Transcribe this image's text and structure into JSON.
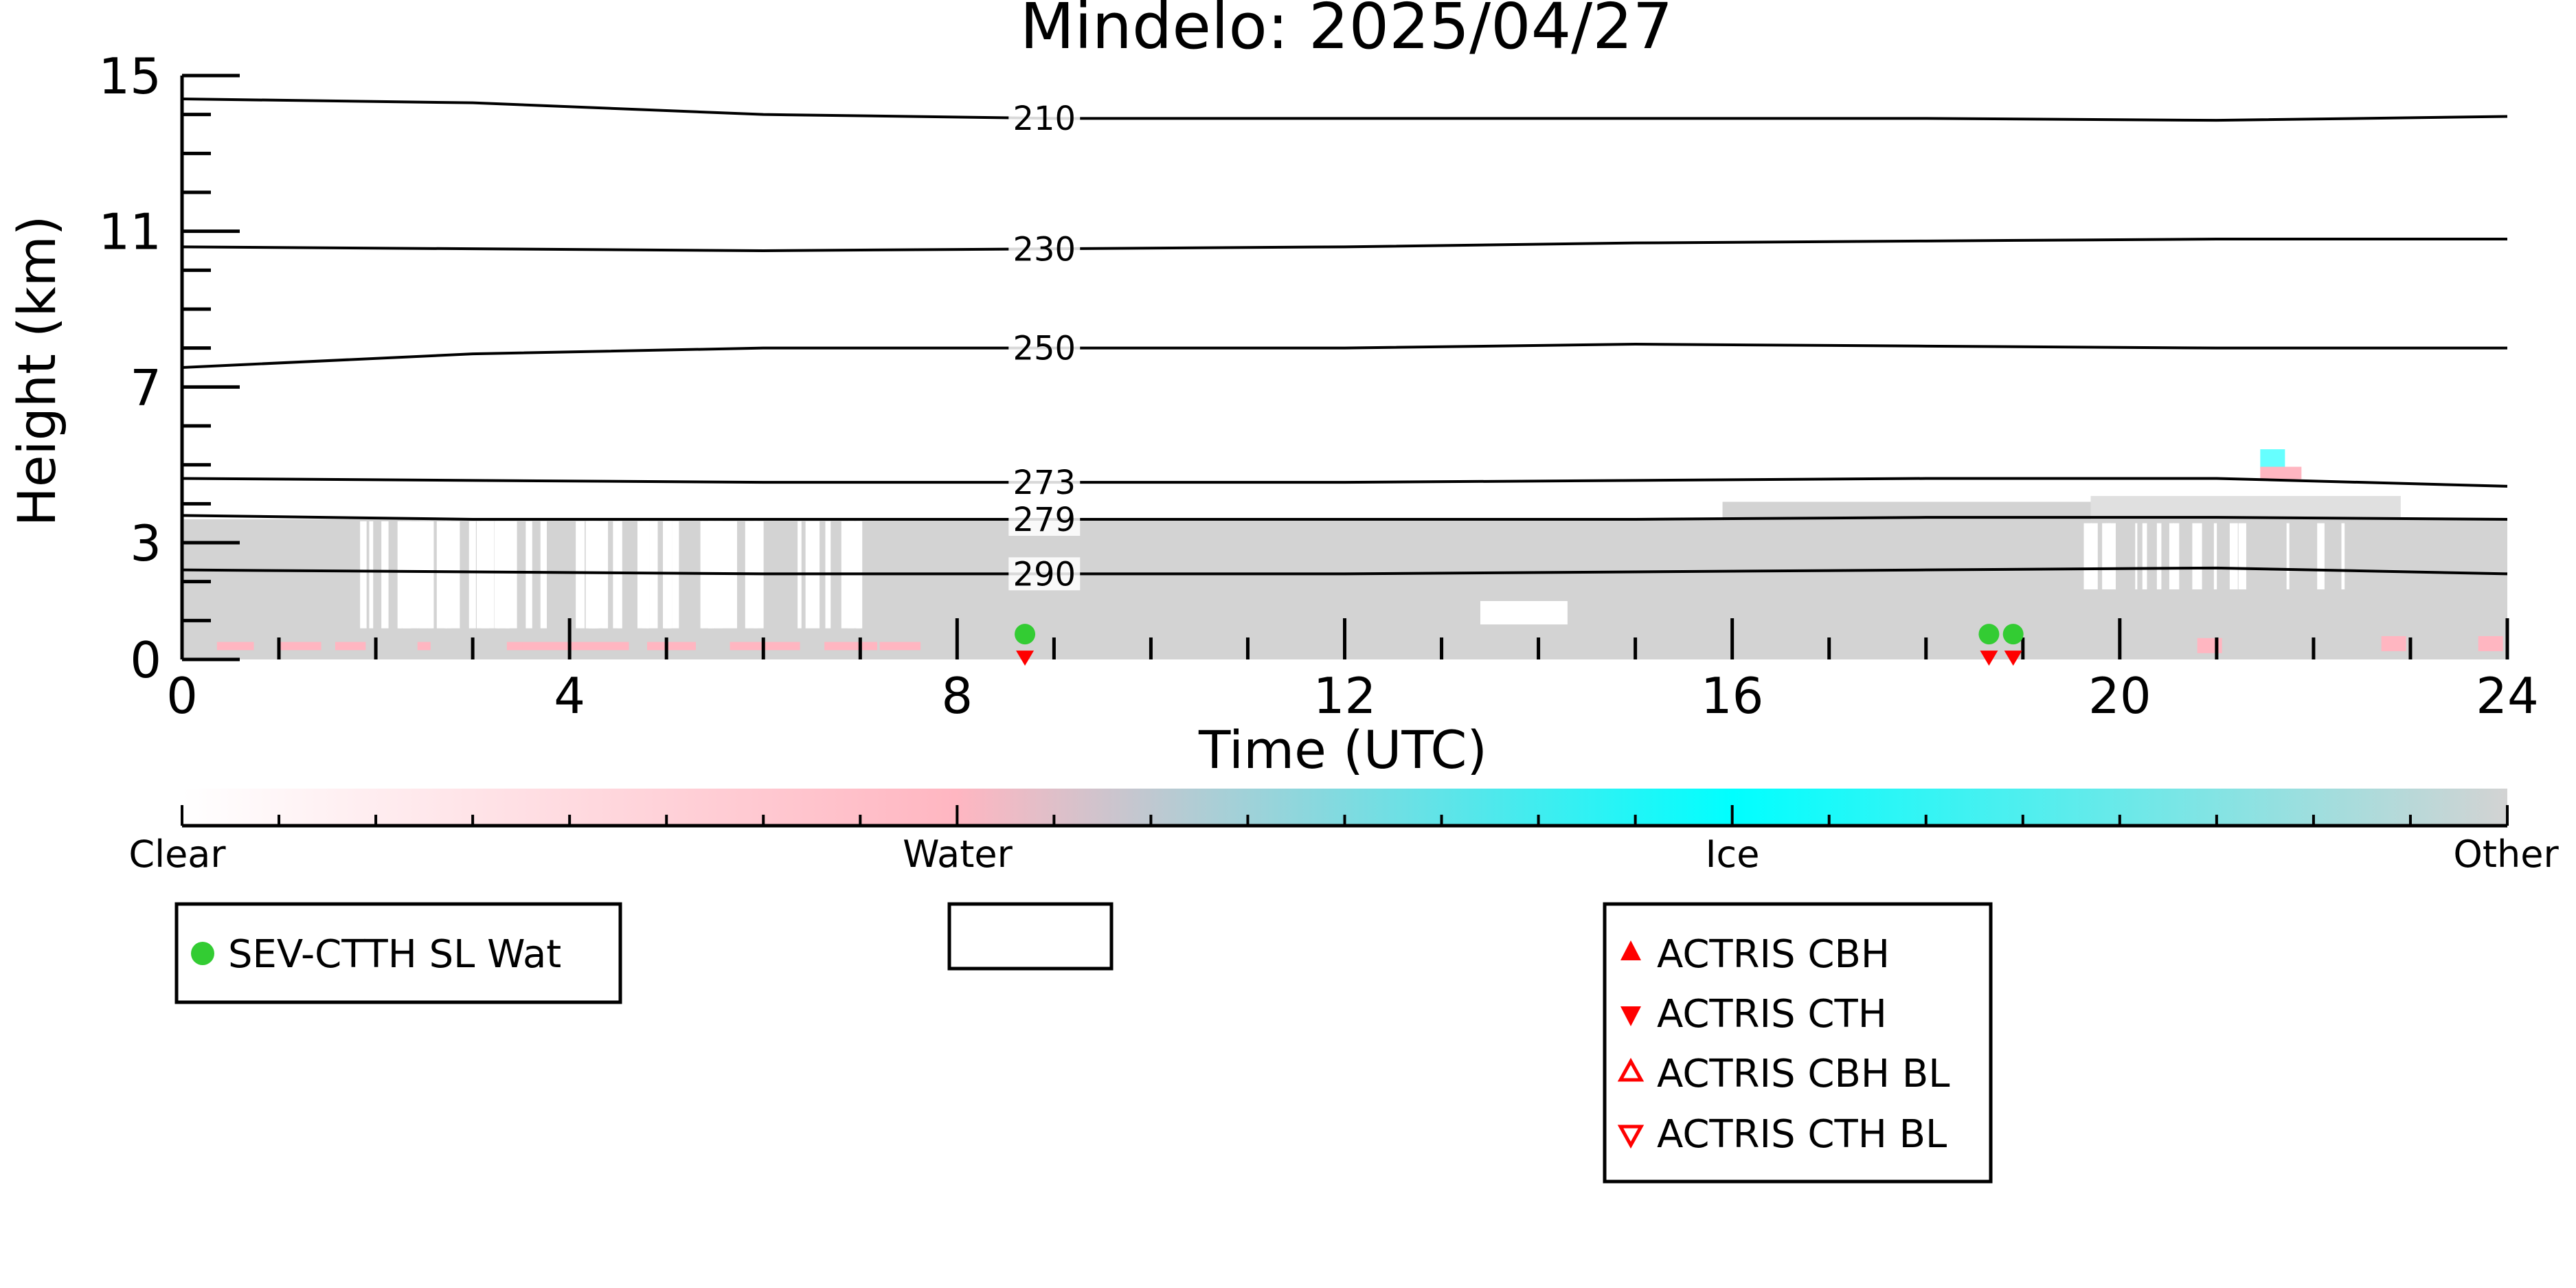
{
  "chart_data": {
    "type": "line",
    "title": "Mindelo: 2025/04/27",
    "xlabel": "Time (UTC)",
    "ylabel": "Height (km)",
    "xlim": [
      0,
      24
    ],
    "ylim": [
      0,
      15
    ],
    "x_ticks": [
      0,
      4,
      8,
      12,
      16,
      20,
      24
    ],
    "y_ticks": [
      0,
      3,
      7,
      11,
      15
    ],
    "x": [
      0,
      3,
      6,
      9,
      12,
      15,
      18,
      21,
      24
    ],
    "series": [
      {
        "name": "210",
        "values": [
          14.4,
          14.3,
          14.0,
          13.9,
          13.9,
          13.9,
          13.9,
          13.85,
          13.95
        ]
      },
      {
        "name": "230",
        "values": [
          10.6,
          10.55,
          10.5,
          10.55,
          10.6,
          10.7,
          10.75,
          10.8,
          10.8
        ]
      },
      {
        "name": "250",
        "values": [
          7.5,
          7.85,
          8.0,
          8.0,
          8.0,
          8.1,
          8.05,
          8.0,
          8.0
        ]
      },
      {
        "name": "273",
        "values": [
          4.65,
          4.6,
          4.55,
          4.55,
          4.55,
          4.6,
          4.65,
          4.65,
          4.45
        ]
      },
      {
        "name": "279",
        "values": [
          3.7,
          3.6,
          3.6,
          3.6,
          3.6,
          3.6,
          3.65,
          3.65,
          3.6
        ]
      },
      {
        "name": "290",
        "values": [
          2.3,
          2.25,
          2.2,
          2.2,
          2.2,
          2.25,
          2.3,
          2.35,
          2.2
        ]
      }
    ],
    "points": {
      "sev_ctth_sl_wat": [
        {
          "x": 8.7,
          "y": 0.65
        },
        {
          "x": 18.65,
          "y": 0.65
        },
        {
          "x": 18.9,
          "y": 0.65
        }
      ],
      "actris_cth": [
        {
          "x": 8.7,
          "y": 0.05
        },
        {
          "x": 18.65,
          "y": 0.05
        },
        {
          "x": 18.9,
          "y": 0.05
        }
      ]
    },
    "classification_colorbar": {
      "labels": [
        "Clear",
        "Water",
        "Ice",
        "Other"
      ],
      "colors": [
        "#ffffff",
        "#ffb6c1",
        "#00ffff",
        "#d3d3d3"
      ]
    },
    "legends": {
      "satellite": [
        "SEV-CTTH SL Wat"
      ],
      "actris": [
        "ACTRIS CBH",
        "ACTRIS CTH",
        "ACTRIS CBH BL",
        "ACTRIS CTH BL"
      ]
    },
    "colors": {
      "cloud_other": "#d3d3d3",
      "cloud_water": "#ffb6c1",
      "cloud_ice": "#00ffff",
      "sev_marker": "#33cc33",
      "actris_marker": "#ff0000"
    }
  }
}
